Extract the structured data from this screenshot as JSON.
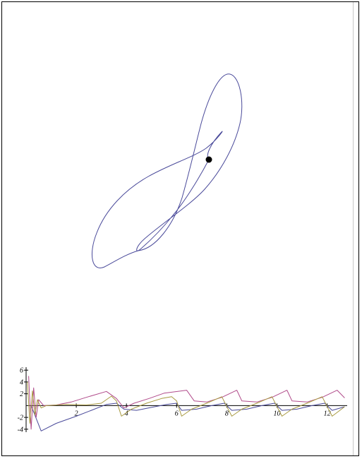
{
  "colors": {
    "phase_curve": "#4a4a9a",
    "point": "#000000",
    "series": [
      "#4a4a9a",
      "#b04a8a",
      "#a89a40"
    ]
  },
  "chart_data": [
    {
      "type": "line",
      "title": "",
      "xlabel": "",
      "ylabel": "",
      "marker_point": {
        "x": 296,
        "y": 226
      },
      "grid": false
    },
    {
      "type": "line",
      "title": "",
      "xlabel": "",
      "ylabel": "",
      "xlim": [
        0,
        12.8
      ],
      "ylim": [
        -4.5,
        6.5
      ],
      "x_ticks": [
        2,
        4,
        6,
        8,
        10,
        12
      ],
      "x_tick_labels": [
        "2",
        "4",
        "6",
        "8",
        "10",
        "12"
      ],
      "y_ticks": [
        -4,
        -2,
        2,
        4,
        6
      ],
      "y_tick_labels": [
        "-4",
        "-2",
        "2",
        "4",
        "6"
      ],
      "grid": false,
      "series": [
        {
          "name": "",
          "values": [
            [
              0.2,
              0
            ],
            [
              0.6,
              -4.3
            ],
            [
              1.2,
              -3
            ],
            [
              2,
              -1.8
            ],
            [
              2.6,
              -0.8
            ],
            [
              3.2,
              0.2
            ],
            [
              3.6,
              0.4
            ],
            [
              3.9,
              -0.6
            ],
            [
              4.4,
              -0.8
            ],
            [
              5,
              -0.3
            ],
            [
              5.6,
              0.2
            ],
            [
              6,
              0.4
            ],
            [
              6.2,
              -0.8
            ],
            [
              6.8,
              -0.6
            ],
            [
              7.4,
              0
            ],
            [
              7.9,
              0.4
            ],
            [
              8.2,
              -0.8
            ],
            [
              8.8,
              -0.6
            ],
            [
              9.4,
              0
            ],
            [
              9.9,
              0.4
            ],
            [
              10.2,
              -0.8
            ],
            [
              10.8,
              -0.6
            ],
            [
              11.4,
              0
            ],
            [
              11.9,
              0.4
            ],
            [
              12.2,
              -0.8
            ],
            [
              12.7,
              -0.2
            ]
          ]
        },
        {
          "name": "",
          "values": [
            [
              0.1,
              5
            ],
            [
              0.2,
              -4
            ],
            [
              0.3,
              3
            ],
            [
              0.4,
              -2
            ],
            [
              0.5,
              1
            ],
            [
              0.7,
              0
            ],
            [
              1.2,
              0.1
            ],
            [
              1.8,
              0.6
            ],
            [
              2.4,
              1.4
            ],
            [
              3.2,
              2.4
            ],
            [
              3.6,
              1.2
            ],
            [
              3.9,
              -0.4
            ],
            [
              4.3,
              0.4
            ],
            [
              4.9,
              1.2
            ],
            [
              5.5,
              2.1
            ],
            [
              6.4,
              2.6
            ],
            [
              6.7,
              0.8
            ],
            [
              7.2,
              0.6
            ],
            [
              7.8,
              1.4
            ],
            [
              8.4,
              2.6
            ],
            [
              8.6,
              0.8
            ],
            [
              9.2,
              0.6
            ],
            [
              9.8,
              1.4
            ],
            [
              10.4,
              2.6
            ],
            [
              10.6,
              0.8
            ],
            [
              11.2,
              0.6
            ],
            [
              11.8,
              1.4
            ],
            [
              12.4,
              2.6
            ],
            [
              12.7,
              1.3
            ]
          ]
        },
        {
          "name": "",
          "values": [
            [
              0.05,
              4
            ],
            [
              0.15,
              -3
            ],
            [
              0.25,
              2.5
            ],
            [
              0.35,
              -1.6
            ],
            [
              0.45,
              1
            ],
            [
              0.6,
              -0.4
            ],
            [
              0.8,
              0
            ],
            [
              1.6,
              0.2
            ],
            [
              2.4,
              0.1
            ],
            [
              3,
              0.4
            ],
            [
              3.4,
              1.6
            ],
            [
              3.6,
              0.8
            ],
            [
              3.8,
              -1.8
            ],
            [
              4.2,
              -0.6
            ],
            [
              4.8,
              0.4
            ],
            [
              5.4,
              1.2
            ],
            [
              5.8,
              1.5
            ],
            [
              6,
              0.8
            ],
            [
              6.2,
              -1.8
            ],
            [
              6.6,
              -0.6
            ],
            [
              7.2,
              0.4
            ],
            [
              7.8,
              1.5
            ],
            [
              8.2,
              -1.8
            ],
            [
              8.6,
              -0.6
            ],
            [
              9.2,
              0.4
            ],
            [
              9.8,
              1.5
            ],
            [
              10.2,
              -1.8
            ],
            [
              10.6,
              -0.6
            ],
            [
              11.2,
              0.4
            ],
            [
              11.8,
              1.5
            ],
            [
              12.2,
              -1.8
            ],
            [
              12.7,
              -0.2
            ]
          ]
        }
      ]
    }
  ]
}
